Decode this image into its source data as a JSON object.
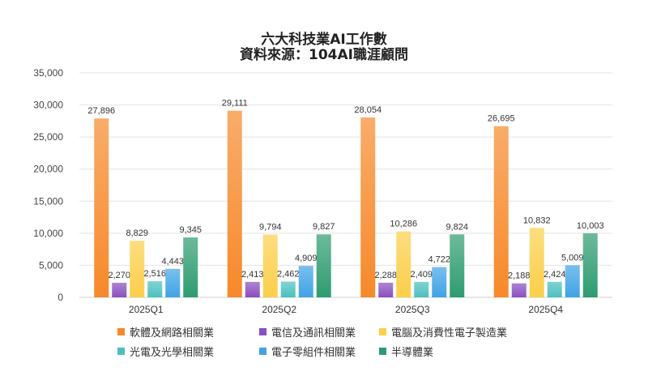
{
  "chart_data": {
    "type": "bar",
    "title": "六大科技業AI工作數",
    "subtitle": "資料來源：104AI職涯顧問",
    "categories": [
      "2025Q1",
      "2025Q2",
      "2025Q3",
      "2025Q4"
    ],
    "ylim": [
      0,
      35000
    ],
    "yticks": [
      "0",
      "5,000",
      "10,000",
      "15,000",
      "20,000",
      "25,000",
      "30,000",
      "35,000"
    ],
    "grid": true,
    "legend_position": "bottom",
    "series": [
      {
        "name": "軟體及網路相關業",
        "color": "#f7892a",
        "values": [
          27896,
          29111,
          28054,
          26695
        ],
        "labels": [
          "27,896",
          "29,111",
          "28,054",
          "26,695"
        ]
      },
      {
        "name": "電信及通訊相關業",
        "color": "#8a4fc0",
        "values": [
          2270,
          2413,
          2288,
          2188
        ],
        "labels": [
          "2,270",
          "2,413",
          "2,288",
          "2,188"
        ]
      },
      {
        "name": "電腦及消費性電子製造業",
        "color": "#fbcf4a",
        "values": [
          8829,
          9794,
          10286,
          10832
        ],
        "labels": [
          "8,829",
          "9,794",
          "10,286",
          "10,832"
        ]
      },
      {
        "name": "光電及光學相關業",
        "color": "#4cc0c0",
        "values": [
          2516,
          2462,
          2409,
          2424
        ],
        "labels": [
          "2,516",
          "2,462",
          "2,409",
          "2,424"
        ]
      },
      {
        "name": "電子零組件相關業",
        "color": "#3fa3e6",
        "values": [
          4443,
          4909,
          4722,
          5009
        ],
        "labels": [
          "4,443",
          "4,909",
          "4,722",
          "5,009"
        ]
      },
      {
        "name": "半導體業",
        "color": "#2e9c70",
        "values": [
          9345,
          9827,
          9824,
          10003
        ],
        "labels": [
          "9,345",
          "9,827",
          "9,824",
          "10,003"
        ]
      }
    ]
  }
}
